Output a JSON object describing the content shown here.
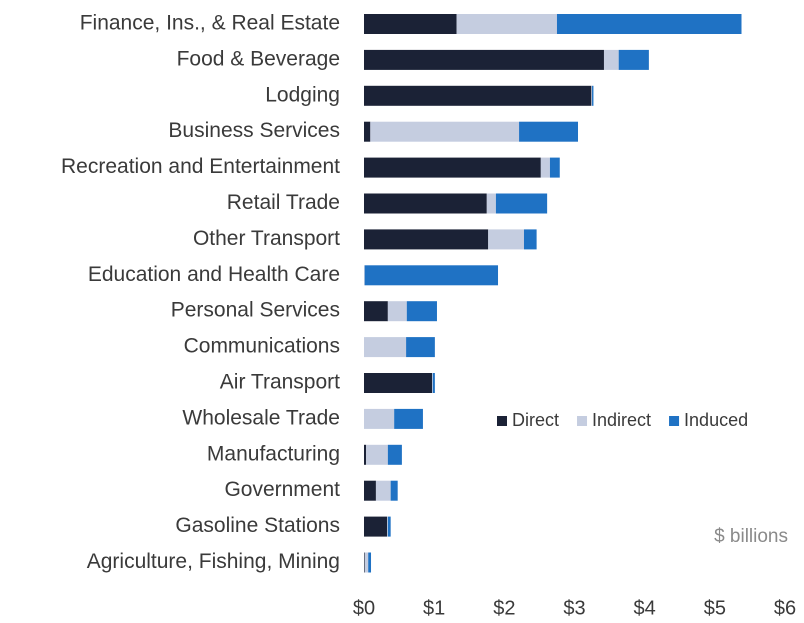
{
  "chart_data": {
    "type": "stacked_bar_horizontal",
    "categories": [
      "Finance, Ins., & Real Estate",
      "Food & Beverage",
      "Lodging",
      "Business Services",
      "Recreation and Entertainment",
      "Retail Trade",
      "Other Transport",
      "Education and Health Care",
      "Personal Services",
      "Communications",
      "Air Transport",
      "Wholesale Trade",
      "Manufacturing",
      "Government",
      "Gasoline Stations",
      "Agriculture, Fishing, Mining"
    ],
    "series": [
      {
        "name": "Direct",
        "color": "#1b2236",
        "values": [
          1.32,
          3.42,
          3.24,
          0.09,
          2.52,
          1.75,
          1.77,
          0,
          0.34,
          0,
          0.97,
          0,
          0.03,
          0.17,
          0.33,
          0.01
        ]
      },
      {
        "name": "Indirect",
        "color": "#c5cde0",
        "values": [
          1.43,
          0.21,
          0.01,
          2.12,
          0.13,
          0.13,
          0.51,
          0.01,
          0.27,
          0.6,
          0.01,
          0.43,
          0.31,
          0.21,
          0.01,
          0.05
        ]
      },
      {
        "name": "Induced",
        "color": "#1f72c4",
        "values": [
          2.63,
          0.43,
          0.02,
          0.84,
          0.14,
          0.73,
          0.18,
          1.9,
          0.43,
          0.41,
          0.03,
          0.41,
          0.2,
          0.1,
          0.04,
          0.04
        ]
      }
    ],
    "xlim": [
      0,
      6
    ],
    "xticks": [
      {
        "value": 0,
        "label": "$0"
      },
      {
        "value": 1,
        "label": "$1"
      },
      {
        "value": 2,
        "label": "$2"
      },
      {
        "value": 3,
        "label": "$3"
      },
      {
        "value": 4,
        "label": "$4"
      },
      {
        "value": 5,
        "label": "$5"
      },
      {
        "value": 6,
        "label": "$6"
      }
    ],
    "annotation": "$ billions",
    "legend": "right"
  }
}
